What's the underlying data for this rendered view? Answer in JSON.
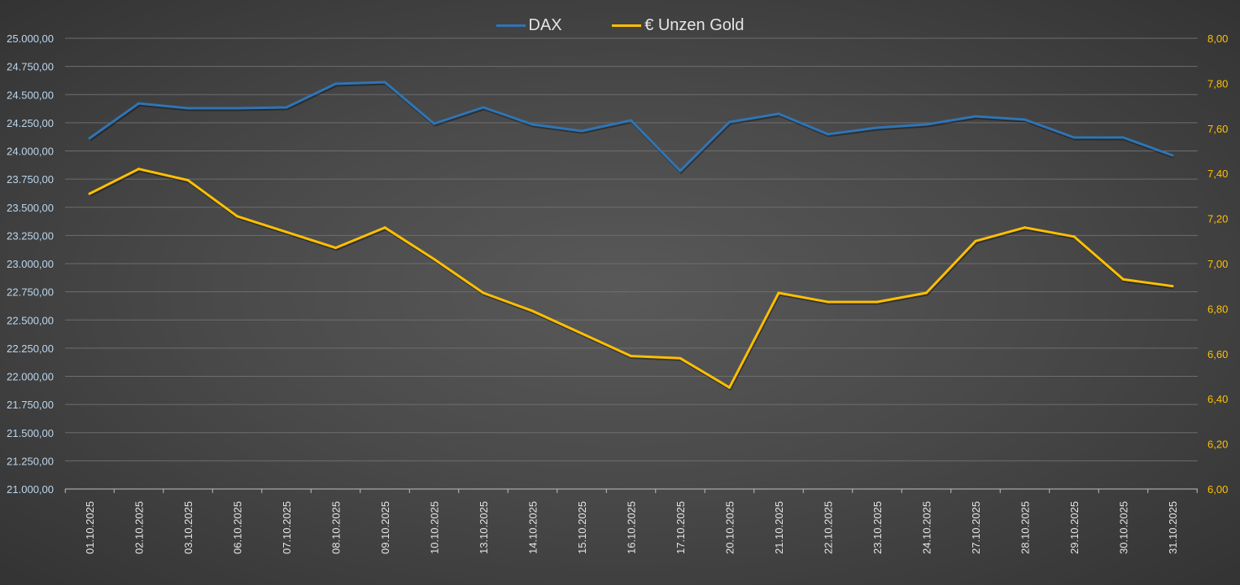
{
  "chart_data": {
    "type": "line",
    "title": "",
    "categories": [
      "01.10.2025",
      "02.10.2025",
      "03.10.2025",
      "06.10.2025",
      "07.10.2025",
      "08.10.2025",
      "09.10.2025",
      "10.10.2025",
      "13.10.2025",
      "14.10.2025",
      "15.10.2025",
      "16.10.2025",
      "17.10.2025",
      "20.10.2025",
      "21.10.2025",
      "22.10.2025",
      "23.10.2025",
      "24.10.2025",
      "27.10.2025",
      "28.10.2025",
      "29.10.2025",
      "30.10.2025",
      "31.10.2025"
    ],
    "series": [
      {
        "name": "DAX",
        "axis": "left",
        "color": "#2e75b6",
        "values": [
          24112,
          24422,
          24379,
          24379,
          24386,
          24596,
          24610,
          24242,
          24386,
          24235,
          24177,
          24271,
          23823,
          24256,
          24329,
          24148,
          24206,
          24235,
          24307,
          24278,
          24119,
          24119,
          23960
        ]
      },
      {
        "name": "€ Unzen Gold",
        "axis": "right",
        "color": "#ffc000",
        "values": [
          7.31,
          7.42,
          7.37,
          7.21,
          7.14,
          7.07,
          7.16,
          7.02,
          6.87,
          6.79,
          6.69,
          6.59,
          6.58,
          6.45,
          6.87,
          6.83,
          6.83,
          6.87,
          7.1,
          7.16,
          7.12,
          6.93,
          6.9
        ]
      }
    ],
    "y_left": {
      "range": [
        21000,
        25000
      ],
      "ticks": [
        "21.000,00",
        "21.250,00",
        "21.500,00",
        "21.750,00",
        "22.000,00",
        "22.250,00",
        "22.500,00",
        "22.750,00",
        "23.000,00",
        "23.250,00",
        "23.500,00",
        "23.750,00",
        "24.000,00",
        "24.250,00",
        "24.500,00",
        "24.750,00",
        "25.000,00"
      ],
      "color": "#bdd7ee"
    },
    "y_right": {
      "range": [
        6,
        8
      ],
      "ticks": [
        "6,00",
        "6,20",
        "6,40",
        "6,60",
        "6,80",
        "7,00",
        "7,20",
        "7,40",
        "7,60",
        "7,80",
        "8,00"
      ],
      "color": "#ffc000"
    },
    "grid": true,
    "legend_position": "top-center"
  }
}
